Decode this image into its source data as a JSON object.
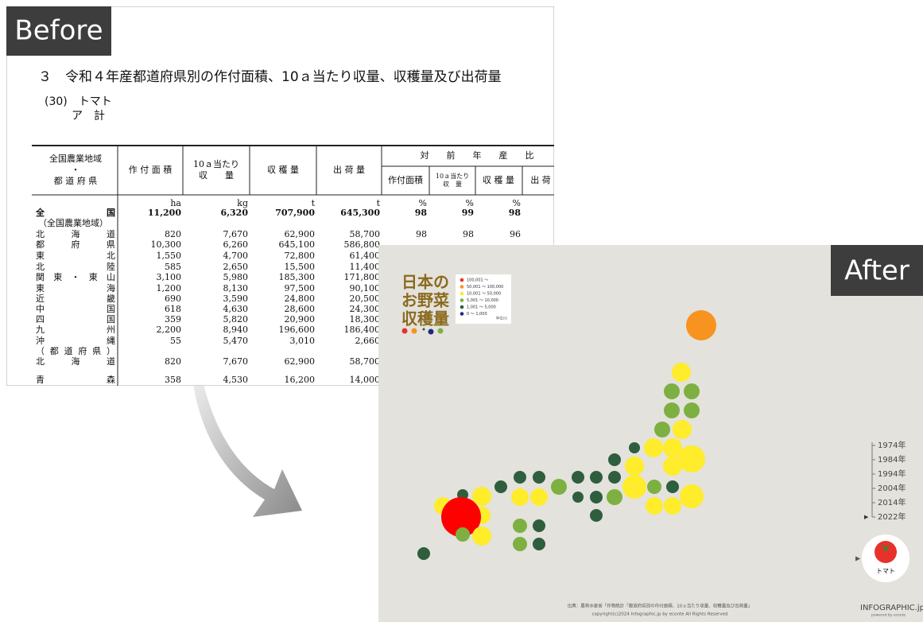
{
  "before": {
    "label": "Before",
    "title": "３　令和４年産都道府県別の作付面積、10ａ当たり収量、収穫量及び出荷量",
    "subtitle": "(30)　トマト",
    "section": "ア　計",
    "table": {
      "header": [
        [
          "全国農業地域",
          "・",
          "都 道 府 県"
        ],
        [
          "作 付 面 積"
        ],
        [
          "10ａ当たり",
          "収　　量"
        ],
        [
          "収 穫 量"
        ],
        [
          "出 荷 量"
        ]
      ],
      "group_header": "対　　前　　年　　産　　比",
      "sub_header": [
        [
          "作付面積"
        ],
        [
          "10ａ当たり",
          "収　量"
        ],
        [
          "収 穫 量"
        ],
        [
          "出 荷"
        ]
      ],
      "units": [
        "ha",
        "kg",
        "t",
        "t",
        "%",
        "%",
        "%"
      ],
      "rows": [
        [
          "全国",
          "11,200",
          "6,320",
          "707,900",
          "645,300",
          "98",
          "99",
          "98"
        ],
        [
          "（全国農業地域）"
        ],
        [
          "北海道",
          "820",
          "7,670",
          "62,900",
          "58,700",
          "98",
          "98",
          "96"
        ],
        [
          "都府県",
          "10,300",
          "6,260",
          "645,100",
          "586,800"
        ],
        [
          "東北",
          "1,550",
          "4,700",
          "72,800",
          "61,400"
        ],
        [
          "北陸",
          "585",
          "2,650",
          "15,500",
          "11,400"
        ],
        [
          "関東・東山",
          "3,100",
          "5,980",
          "185,300",
          "171,800"
        ],
        [
          "東海",
          "1,200",
          "8,130",
          "97,500",
          "90,100"
        ],
        [
          "近畿",
          "690",
          "3,590",
          "24,800",
          "20,500"
        ],
        [
          "中国",
          "618",
          "4,630",
          "28,600",
          "24,300"
        ],
        [
          "四国",
          "359",
          "5,820",
          "20,900",
          "18,300"
        ],
        [
          "九州",
          "2,200",
          "8,940",
          "196,600",
          "186,400"
        ],
        [
          "沖縄",
          "55",
          "5,470",
          "3,010",
          "2,660"
        ],
        [
          "（都道府県）"
        ],
        [
          "北海道",
          "820",
          "7,670",
          "62,900",
          "58,700"
        ],
        [
          "青森",
          "358",
          "4,530",
          "16,200",
          "14,000"
        ]
      ]
    }
  },
  "after": {
    "label": "After",
    "title": [
      "日本の",
      "お野菜",
      "収穫量"
    ],
    "legend": [
      {
        "label": "100,001 〜",
        "color": "#e8312a"
      },
      {
        "label": "50,001 〜 100,000",
        "color": "#f7931e"
      },
      {
        "label": "10,001 〜 50,000",
        "color": "#ffe92e"
      },
      {
        "label": "5,001 〜 10,000",
        "color": "#7db041"
      },
      {
        "label": "1,001 〜 5,000",
        "color": "#2e5e3e"
      },
      {
        "label": "0 〜 1,000",
        "color": "#1d2a80"
      }
    ],
    "unit": "単位(t)",
    "years": [
      "1974年",
      "1984年",
      "1994年",
      "2004年",
      "2014年",
      "2022年"
    ],
    "vegetable": "トマト",
    "source": "出典：農林水産省「作物統計「都道府県別の作付面積、10ａ当たり収量、収穫量及び出荷量」",
    "copyright": "copyright(c)2024 Infographic.jp by econte All Rights Reserved",
    "logo": "INFOGRAPHIC.jp",
    "logo_sub": "powered by econte"
  }
}
